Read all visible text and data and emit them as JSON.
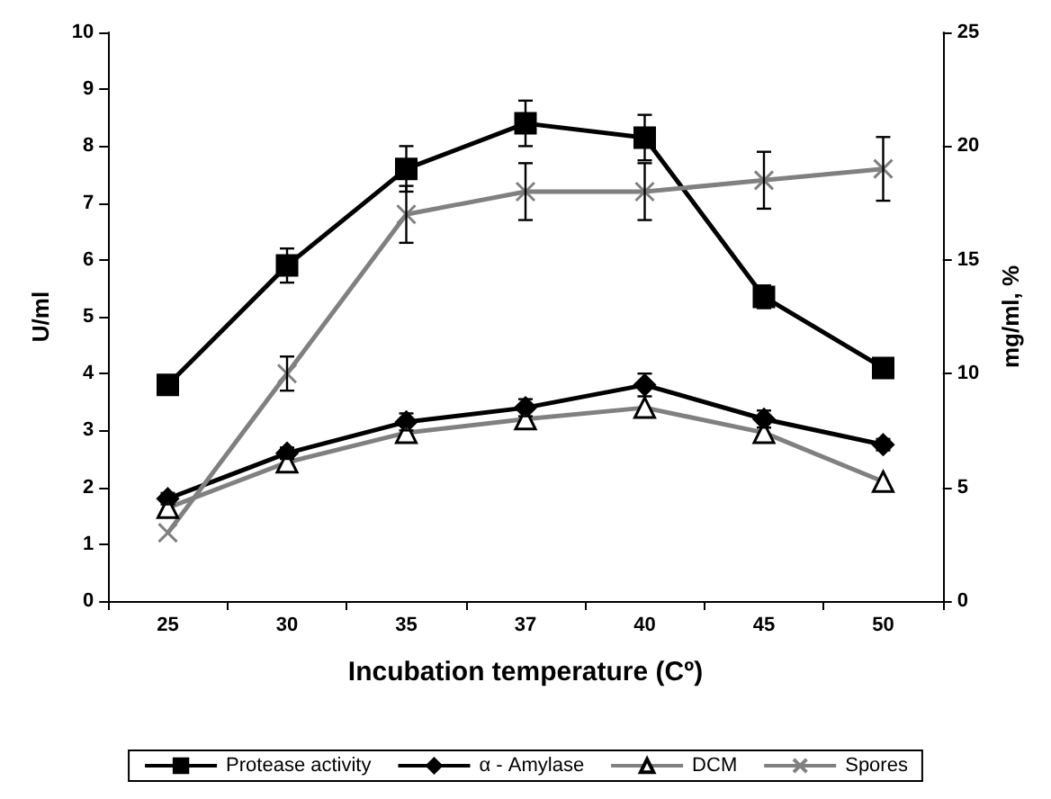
{
  "chart_data": {
    "type": "line",
    "xlabel": "Incubation temperature (Cº)",
    "ylabel": "U/ml",
    "y2label": "mg/ml, %",
    "categories": [
      "25",
      "30",
      "35",
      "37",
      "40",
      "45",
      "50"
    ],
    "ylim": [
      0,
      10
    ],
    "yticks": [
      0,
      1,
      2,
      3,
      4,
      5,
      6,
      7,
      8,
      9,
      10
    ],
    "y2lim": [
      0,
      25
    ],
    "y2ticks": [
      0,
      5,
      10,
      15,
      20,
      25
    ],
    "grid": false,
    "legend": "bottom",
    "series": [
      {
        "name": "Protease activity",
        "color": "#000000",
        "marker": "square",
        "values": [
          3.8,
          5.9,
          7.6,
          8.4,
          8.15,
          5.35,
          4.1
        ],
        "errors": [
          null,
          0.3,
          0.4,
          0.4,
          0.4,
          0.2,
          0.1
        ]
      },
      {
        "name": "α - Amylase",
        "color": "#000000",
        "marker": "diamond",
        "values": [
          1.8,
          2.6,
          3.15,
          3.4,
          3.8,
          3.2,
          2.75
        ],
        "errors": [
          0.1,
          0.1,
          0.15,
          0.15,
          0.2,
          0.15,
          0.1
        ]
      },
      {
        "name": "DCM",
        "color": "#808080",
        "marker": "triangle",
        "axis": "y2",
        "values": [
          4.1,
          6.1,
          7.4,
          8,
          8.5,
          7.4,
          5.25
        ]
      },
      {
        "name": "Spores",
        "color": "#808080",
        "marker": "cross",
        "axis": "y2",
        "values": [
          3,
          10,
          17,
          18,
          18,
          18.5,
          19
        ],
        "errors": [
          null,
          0.75,
          1.25,
          1.25,
          1.25,
          1.25,
          1.4
        ]
      }
    ]
  }
}
